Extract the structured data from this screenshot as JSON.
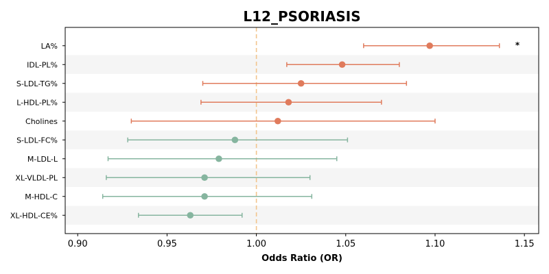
{
  "chart_data": {
    "type": "forest",
    "title": "L12_PSORIASIS",
    "xlabel": "Odds Ratio (OR)",
    "ylabel": "",
    "xlim": [
      0.893,
      1.158
    ],
    "xticks": [
      0.9,
      0.95,
      1.0,
      1.05,
      1.1,
      1.15
    ],
    "xtick_labels": [
      "0.90",
      "0.95",
      "1.00",
      "1.05",
      "1.10",
      "1.15"
    ],
    "reference_line": 1.0,
    "grid": false,
    "colors": {
      "positive": "#e07b5c",
      "negative": "#86b59f",
      "reference": "#f2c48d",
      "band": "#f5f5f5"
    },
    "rows": [
      {
        "label": "LA%",
        "or": 1.097,
        "ci_low": 1.06,
        "ci_high": 1.136,
        "direction": "positive",
        "annotation": "*"
      },
      {
        "label": "IDL-PL%",
        "or": 1.048,
        "ci_low": 1.017,
        "ci_high": 1.08,
        "direction": "positive",
        "annotation": ""
      },
      {
        "label": "S-LDL-TG%",
        "or": 1.025,
        "ci_low": 0.97,
        "ci_high": 1.084,
        "direction": "positive",
        "annotation": ""
      },
      {
        "label": "L-HDL-PL%",
        "or": 1.018,
        "ci_low": 0.969,
        "ci_high": 1.07,
        "direction": "positive",
        "annotation": ""
      },
      {
        "label": "Cholines",
        "or": 1.012,
        "ci_low": 0.93,
        "ci_high": 1.1,
        "direction": "positive",
        "annotation": ""
      },
      {
        "label": "S-LDL-FC%",
        "or": 0.988,
        "ci_low": 0.928,
        "ci_high": 1.051,
        "direction": "negative",
        "annotation": ""
      },
      {
        "label": "M-LDL-L",
        "or": 0.979,
        "ci_low": 0.917,
        "ci_high": 1.045,
        "direction": "negative",
        "annotation": ""
      },
      {
        "label": "XL-VLDL-PL",
        "or": 0.971,
        "ci_low": 0.916,
        "ci_high": 1.03,
        "direction": "negative",
        "annotation": ""
      },
      {
        "label": "M-HDL-C",
        "or": 0.971,
        "ci_low": 0.914,
        "ci_high": 1.031,
        "direction": "negative",
        "annotation": ""
      },
      {
        "label": "XL-HDL-CE%",
        "or": 0.963,
        "ci_low": 0.934,
        "ci_high": 0.992,
        "direction": "negative",
        "annotation": ""
      }
    ]
  }
}
